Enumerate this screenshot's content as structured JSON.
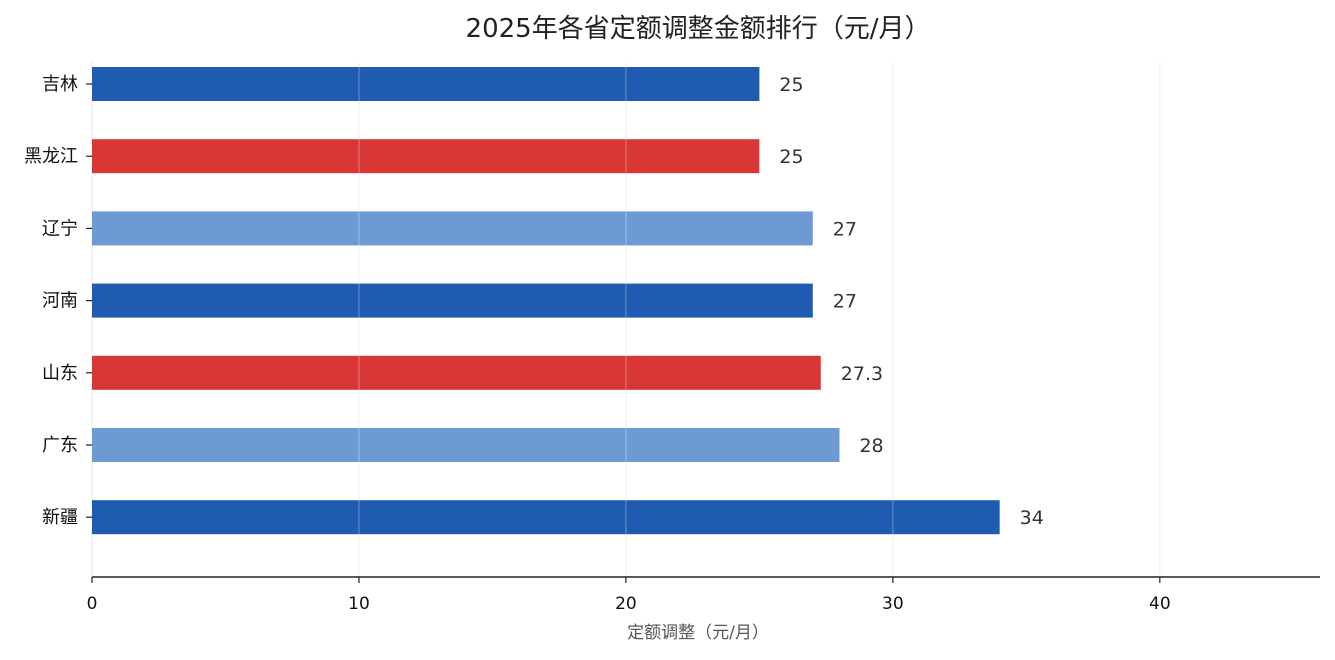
{
  "chart_data": {
    "type": "bar",
    "orientation": "horizontal",
    "title": "2025年各省定额调整金额排行（元/月）",
    "xlabel": "定额调整（元/月）",
    "ylabel": "",
    "categories": [
      "吉林",
      "黑龙江",
      "辽宁",
      "河南",
      "山东",
      "广东",
      "新疆"
    ],
    "values": [
      25,
      25,
      27,
      27,
      27.3,
      28,
      34
    ],
    "value_labels": [
      "25",
      "25",
      "27",
      "27",
      "27.3",
      "28",
      "34"
    ],
    "colors": [
      "#1f5bb0",
      "#d93636",
      "#6c9bd4",
      "#1f5bb0",
      "#d93636",
      "#6c9bd4",
      "#1f5bb0"
    ],
    "xlim": [
      0,
      46
    ],
    "x_ticks": [
      0,
      10,
      20,
      30,
      40
    ],
    "x_tick_labels": [
      "0",
      "10",
      "20",
      "30",
      "40"
    ],
    "grid": "vertical",
    "legend": "none"
  }
}
